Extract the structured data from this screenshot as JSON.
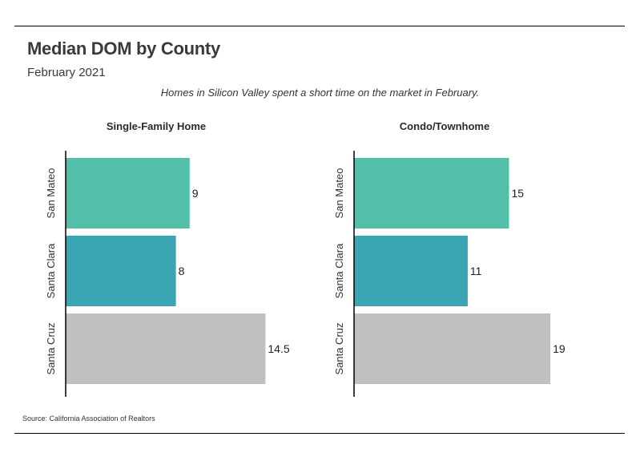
{
  "header": {
    "title": "Median DOM by County",
    "subtitle": "February 2021",
    "annotation": "Homes in Silicon Valley spent a short time on the market in February."
  },
  "footer": {
    "source": "Source:  California Association of Realtors"
  },
  "colors": {
    "san_mateo": "#52bfa8",
    "santa_clara": "#3aa6b4",
    "santa_cruz": "#c0c0c0",
    "axis": "#000000"
  },
  "chart_data": [
    {
      "type": "bar",
      "orientation": "horizontal",
      "title": "Single-Family Home",
      "categories": [
        "San Mateo",
        "Santa Clara",
        "Santa Cruz"
      ],
      "values": [
        9,
        8,
        14.5
      ],
      "value_labels": [
        "9",
        "8",
        "14.5"
      ],
      "xlim": [
        0,
        15
      ],
      "grid": false
    },
    {
      "type": "bar",
      "orientation": "horizontal",
      "title": "Condo/Townhome",
      "categories": [
        "San Mateo",
        "Santa Clara",
        "Santa Cruz"
      ],
      "values": [
        15,
        11,
        19
      ],
      "value_labels": [
        "15",
        "11",
        "19"
      ],
      "xlim": [
        0,
        20
      ],
      "grid": false
    }
  ]
}
